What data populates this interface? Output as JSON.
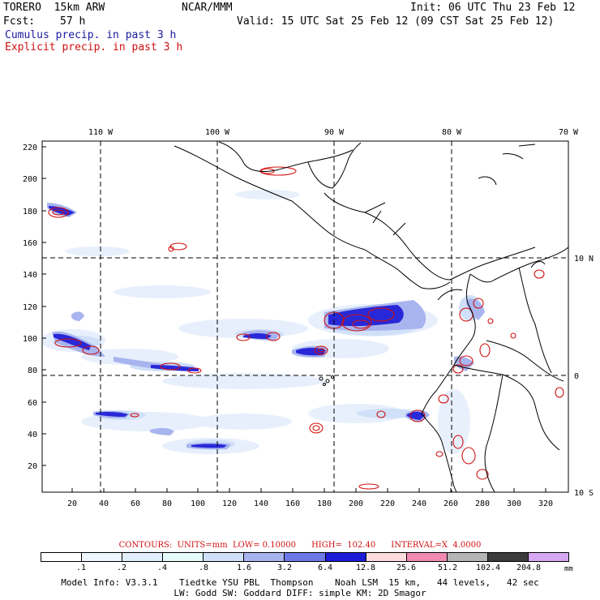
{
  "header": {
    "model": "TORERO  15km ARW",
    "org": "NCAR/MMM",
    "init": "Init: 06 UTC Thu 23 Feb 12",
    "fcst_label": "Fcst:",
    "fcst_hours": "57 h",
    "valid": "Valid: 15 UTC Sat 25 Feb 12 (09 CST Sat 25 Feb 12)",
    "legend_cumulus": "Cumulus precip. in past 3 h",
    "legend_explicit": "Explicit precip. in past 3 h"
  },
  "map": {
    "top_longitude_labels": [
      "110 W",
      "100 W",
      "90 W",
      "80 W",
      "70 W"
    ],
    "right_latitude_labels": [
      "10 N",
      "0",
      "10 S"
    ],
    "left_axis_ticks": [
      "220",
      "200",
      "180",
      "160",
      "140",
      "120",
      "100",
      "80",
      "60",
      "40",
      "20"
    ],
    "bottom_axis_ticks": [
      "20",
      "40",
      "60",
      "80",
      "100",
      "120",
      "140",
      "160",
      "180",
      "200",
      "220",
      "240",
      "260",
      "280",
      "300",
      "320"
    ]
  },
  "contours": {
    "text": "CONTOURS:  UNITS=mm  LOW= 0.10000      HIGH=  102.40      INTERVAL=X  4.0000"
  },
  "colorbar": {
    "labels": [
      ".1",
      ".2",
      ".4",
      ".8",
      "1.6",
      "3.2",
      "6.4",
      "12.8",
      "25.6",
      "51.2",
      "102.4",
      "204.8"
    ],
    "units": "mm",
    "colors": [
      "#ffffff",
      "#eef6ff",
      "#e2eefc",
      "#e6fbfb",
      "#cfe0f8",
      "#a8b4ee",
      "#6c78e6",
      "#1c1cd8",
      "#fcdcdc",
      "#f08ab0",
      "#b4b4b4",
      "#3c3c3c",
      "#d6a8f4"
    ]
  },
  "footer": {
    "line1": "Model Info: V3.3.1    Tiedtke YSU PBL  Thompson    Noah LSM  15 km,   44 levels,   42 sec",
    "line2": "LW: Godd SW: Goddard DIFF: simple KM: 2D Smagor"
  }
}
